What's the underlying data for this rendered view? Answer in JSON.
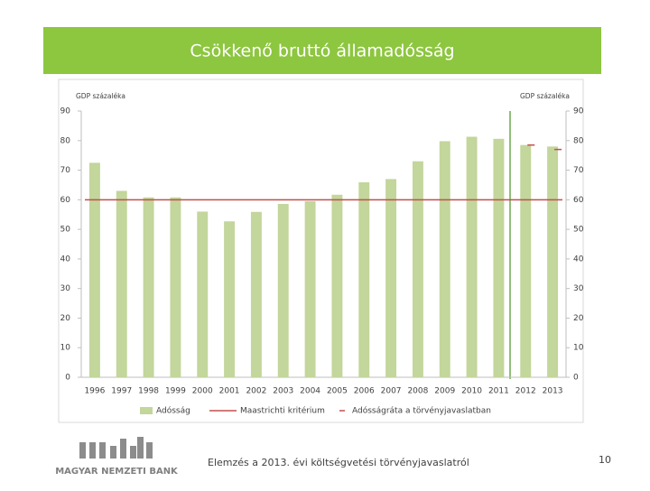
{
  "header": {
    "title": "Csökkenő bruttó államadósság"
  },
  "chart_data": {
    "type": "bar",
    "ylabel": "GDP százaléka",
    "y2label": "GDP százaléka",
    "categories": [
      "1996",
      "1997",
      "1998",
      "1999",
      "2000",
      "2001",
      "2002",
      "2003",
      "2004",
      "2005",
      "2006",
      "2007",
      "2008",
      "2009",
      "2010",
      "2011",
      "2012",
      "2013"
    ],
    "series": [
      {
        "name": "Adósság",
        "type": "bar",
        "color": "#c3d69b",
        "values": [
          72.5,
          63,
          60.8,
          60.8,
          56,
          52.7,
          55.9,
          58.6,
          59.5,
          61.7,
          65.9,
          67,
          73,
          79.8,
          81.3,
          80.6,
          78.5,
          78
        ]
      },
      {
        "name": "Maastrichti kritérium",
        "type": "line",
        "color": "#c0504d",
        "values": [
          60,
          60,
          60,
          60,
          60,
          60,
          60,
          60,
          60,
          60,
          60,
          60,
          60,
          60,
          60,
          60,
          60,
          60
        ]
      },
      {
        "name": "Adósságráta a törvényjavaslatban",
        "type": "marker",
        "color": "#c0504d",
        "values": [
          null,
          null,
          null,
          null,
          null,
          null,
          null,
          null,
          null,
          null,
          null,
          null,
          null,
          null,
          null,
          null,
          78.5,
          77
        ]
      }
    ],
    "ylim": [
      0,
      90
    ],
    "yticks": [
      0,
      10,
      20,
      30,
      40,
      50,
      60,
      70,
      80,
      90
    ],
    "y2lim": [
      0,
      90
    ],
    "y2ticks": [
      0,
      10,
      20,
      30,
      40,
      50,
      60,
      70,
      80,
      90
    ]
  },
  "footer": {
    "logo": "MAGYAR NEMZETI BANK",
    "text": "Elemzés a 2013. évi költségvetési törvényjavaslatról",
    "page": "10"
  }
}
